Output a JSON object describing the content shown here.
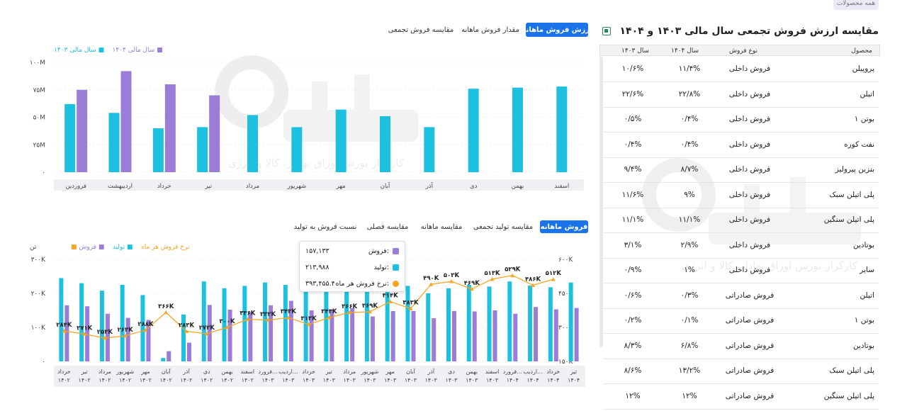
{
  "top_badge": "همه محصولات",
  "table_title": "مقایسه ارزش فروش تجمعی سال مالی ۱۴۰۳ و ۱۴۰۴",
  "table": {
    "headers": {
      "product": "محصول",
      "type": "نوع فروش",
      "y1404": "سال ۱۴۰۴",
      "y1403": "سال ۱۴۰۳"
    },
    "rows": [
      {
        "product": "پروپیلن",
        "type": "فروش داخلی",
        "y1404": "۱۱/۴%",
        "y1403": "۱۰/۶%"
      },
      {
        "product": "اتیلن",
        "type": "فروش داخلی",
        "y1404": "۲۲/۸%",
        "y1403": "۲۲/۶%"
      },
      {
        "product": "بوتن ۱",
        "type": "فروش داخلی",
        "y1404": "۰/۴%",
        "y1403": "۰/۵%"
      },
      {
        "product": "نفت کوره",
        "type": "فروش داخلی",
        "y1404": "۰/۴%",
        "y1403": "۰/۴%"
      },
      {
        "product": "بنزین پیرولیز",
        "type": "فروش داخلی",
        "y1404": "۸/۷%",
        "y1403": "۹/۴%"
      },
      {
        "product": "پلی اتیلن سبک",
        "type": "فروش داخلی",
        "y1404": "۹%",
        "y1403": "۱۱/۶%"
      },
      {
        "product": "پلی اتیلن سنگین",
        "type": "فروش داخلی",
        "y1404": "۱۱/۱%",
        "y1403": "۱۱/۱%"
      },
      {
        "product": "بوتادین",
        "type": "فروش داخلی",
        "y1404": "۲/۹%",
        "y1403": "۳/۱%"
      },
      {
        "product": "سایر",
        "type": "فروش داخلی",
        "y1404": "۱%",
        "y1403": "۰/۹%"
      },
      {
        "product": "اتیلن",
        "type": "فروش صادراتی",
        "y1404": "۰/۳%",
        "y1403": "۰/۶%"
      },
      {
        "product": "بوتن ۱",
        "type": "فروش صادراتی",
        "y1404": "۰/۱%",
        "y1403": "۰/۲%"
      },
      {
        "product": "بوتادین",
        "type": "فروش صادراتی",
        "y1404": "۶/۸%",
        "y1403": "۸/۳%"
      },
      {
        "product": "پلی اتیلن سبک",
        "type": "فروش صادراتی",
        "y1404": "۱۳/۲%",
        "y1403": "۸/۶%"
      },
      {
        "product": "پلی اتیلن سنگین",
        "type": "فروش صادراتی",
        "y1404": "۱۲%",
        "y1403": "۱۲%"
      }
    ]
  },
  "top_tabs": [
    "ارزش فروش ماهانه",
    "مقدار فروش ماهانه",
    "مقایسه فروش تجمعی"
  ],
  "bottom_tabs": [
    "فروش ماهانه",
    "مقایسه تولید تجمعی",
    "مقایسه ماهانه",
    "مقایسه فصلی",
    "نسبت فروش به تولید"
  ],
  "watermark": {
    "name": "آگاه",
    "tagline": "کارگزار بورس اوراق بهادار، کالا و انرژی"
  },
  "colors": {
    "accent": "#1a73e8",
    "cyan": "#1ec0e0",
    "purple": "#9b7dd8",
    "orange": "#f5a623"
  },
  "tooltip": {
    "sales_label": "فروش:",
    "sales_value": "۱۵۷,۱۳۳",
    "prod_label": "تولید:",
    "prod_value": "۲۱۳,۹۸۸",
    "rate_label": "نرخ فروش هر ماه:",
    "rate_value": "۳۹۳,۴۵۵.۴"
  },
  "chart_data": [
    {
      "type": "bar",
      "legend": [
        "سال مالی ۱۴۰۴",
        "سال مالی ۱۴۰۳"
      ],
      "yticks": [
        "۱۰۰M",
        "۷۵M",
        "۵۰M",
        "۲۵M",
        "۰"
      ],
      "ylim": [
        0,
        100
      ],
      "categories": [
        "اسفند",
        "بهمن",
        "دی",
        "آذر",
        "آبان",
        "مهر",
        "شهریور",
        "مرداد",
        "تیر",
        "خرداد",
        "اردیبهشت",
        "فروردین"
      ],
      "series": [
        {
          "name": "سال مالی ۱۴۰۳",
          "color": "#1ec0e0",
          "values": [
            78,
            77,
            76,
            41,
            51,
            57,
            41,
            52,
            41,
            40,
            54,
            62
          ]
        },
        {
          "name": "سال مالی ۱۴۰۴",
          "color": "#9b7dd8",
          "values": [
            null,
            null,
            null,
            null,
            null,
            null,
            null,
            null,
            70,
            80,
            92,
            75
          ]
        }
      ]
    },
    {
      "type": "bar",
      "legend": [
        "فروش",
        "تولید",
        "نرخ فروش هر ماه"
      ],
      "y_left_unit": "تن",
      "y_left_ticks": [
        "۳۰۰K",
        "۲۰۰K",
        "۱۰۰K",
        "۰"
      ],
      "y_right_ticks": [
        "۶۰۰K",
        "۴۵۰K",
        "۳۰۰K",
        "۱۵۰K"
      ],
      "y_left_lim": [
        0,
        300
      ],
      "y_right_lim": [
        150,
        600
      ],
      "categories": [
        [
          "خرداد",
          "۱۴۰۲"
        ],
        [
          "تیر",
          "۱۴۰۲"
        ],
        [
          "مرداد",
          "۱۴۰۲"
        ],
        [
          "شهریور",
          "۱۴۰۲"
        ],
        [
          "مهر",
          "۱۴۰۲"
        ],
        [
          "آبان",
          "۱۴۰۲"
        ],
        [
          "آذر",
          "۱۴۰۲"
        ],
        [
          "دی",
          "۱۴۰۲"
        ],
        [
          "بهمن",
          "۱۴۰۲"
        ],
        [
          "اسفند",
          "۱۴۰۲"
        ],
        [
          "فرورد...",
          "۱۴۰۳"
        ],
        [
          "اردیب...",
          "۱۴۰۳"
        ],
        [
          "خرداد",
          "۱۴۰۳"
        ],
        [
          "تیر",
          "۱۴۰۳"
        ],
        [
          "مرداد",
          "۱۴۰۳"
        ],
        [
          "شهریور",
          "۱۴۰۳"
        ],
        [
          "مهر",
          "۱۴۰۳"
        ],
        [
          "آبان",
          "۱۴۰۳"
        ],
        [
          "آذر",
          "۱۴۰۳"
        ],
        [
          "دی",
          "۱۴۰۳"
        ],
        [
          "بهمن",
          "۱۴۰۳"
        ],
        [
          "اسفند",
          "۱۴۰۳"
        ],
        [
          "فرورد...",
          "۱۴۰۴"
        ],
        [
          "اردیب...",
          "۱۴۰۴"
        ],
        [
          "خرداد",
          "۱۴۰۴"
        ],
        [
          "تیر",
          "۱۴۰۴"
        ]
      ],
      "series": [
        {
          "name": "تولید",
          "color": "#1ec0e0",
          "values": [
            245,
            230,
            208,
            225,
            195,
            10,
            138,
            235,
            215,
            222,
            232,
            225,
            232,
            232,
            232,
            228,
            235,
            222,
            200,
            215,
            225,
            220,
            235,
            223,
            218,
            232
          ]
        },
        {
          "name": "فروش",
          "color": "#9b7dd8",
          "values": [
            165,
            162,
            140,
            128,
            122,
            30,
            55,
            166,
            152,
            145,
            165,
            178,
            150,
            152,
            157,
            132,
            148,
            148,
            127,
            148,
            147,
            150,
            140,
            160,
            153,
            157
          ]
        },
        {
          "name": "نرخ فروش هر ماه",
          "color": "#f5a623",
          "values": [
            284,
            271,
            253,
            263,
            288,
            366,
            283,
            272,
            300,
            336,
            332,
            343,
            313,
            343,
            366,
            369,
            414,
            383,
            490,
            503,
            469,
            513,
            529,
            486,
            512,
            null
          ],
          "labels": [
            "۲۸۴K",
            "۲۷۱K",
            "۲۵۳K",
            "۲۶۳K",
            "۲۸۸K",
            "۳۶۶K",
            "۲۸۳K",
            "۲۷۲K",
            "۳۰۰K",
            "۳۳۶K",
            "۳۳۲K",
            "۳۴۳K",
            "۳۱۳K",
            "۳۴۳K",
            "۳۶۶K",
            "۳۶۹K",
            "۴۱۴K",
            "۳۸۳K",
            "۴۹۰K",
            "۵۰۳K",
            "۴۶۹K",
            "۵۱۳K",
            "۵۲۹K",
            "۴۸۶K",
            "۵۱۲K",
            ""
          ]
        }
      ]
    }
  ]
}
